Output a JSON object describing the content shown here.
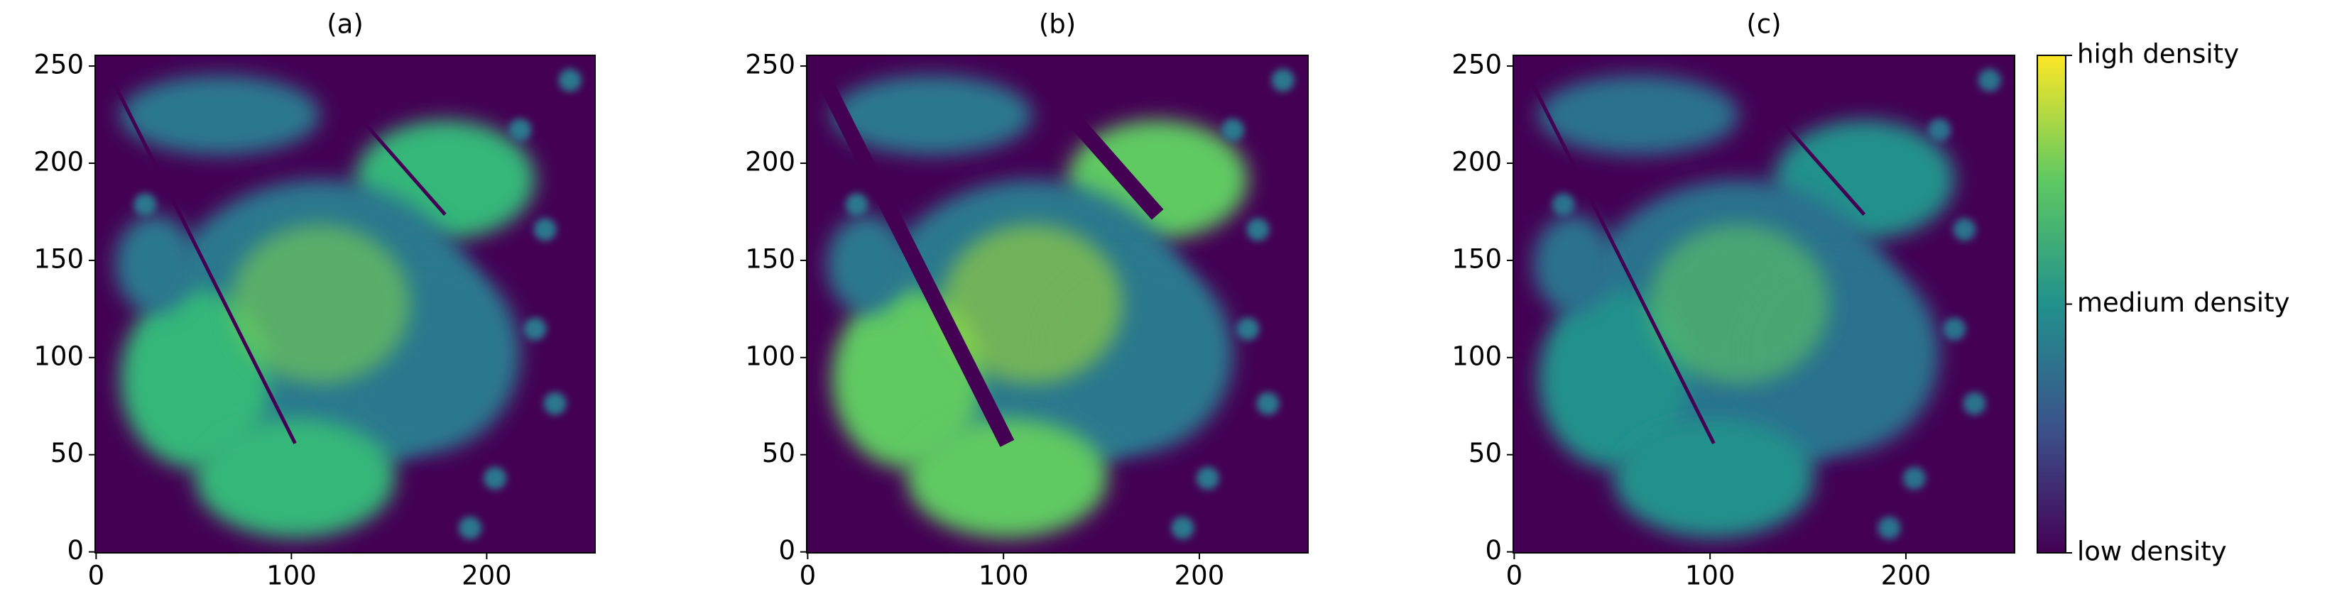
{
  "chart_data": [
    {
      "type": "heatmap",
      "title": "(a)",
      "xlim": [
        -0.5,
        255.5
      ],
      "ylim": [
        255.5,
        -0.5
      ],
      "xticks": [
        0,
        100,
        200
      ],
      "yticks": [
        0,
        50,
        100,
        150,
        200,
        250
      ],
      "colors": [
        "#440154",
        "#2a788e",
        "#35b779",
        "#7ad151"
      ]
    },
    {
      "type": "heatmap",
      "title": "(b)",
      "xlim": [
        -0.5,
        255.5
      ],
      "ylim": [
        255.5,
        -0.5
      ],
      "xticks": [
        0,
        100,
        200
      ],
      "yticks": [
        0,
        50,
        100,
        150,
        200,
        250
      ],
      "colors": [
        "#440154",
        "#2a788e",
        "#5ec962",
        "#a0da39"
      ]
    },
    {
      "type": "heatmap",
      "title": "(c)",
      "xlim": [
        -0.5,
        255.5
      ],
      "ylim": [
        255.5,
        -0.5
      ],
      "xticks": [
        0,
        100,
        200
      ],
      "yticks": [
        0,
        50,
        100,
        150,
        200,
        250
      ],
      "colors": [
        "#440154",
        "#2c728e",
        "#21918c",
        "#5ec962"
      ],
      "colorbar": {
        "labels": [
          "low density",
          "medium density",
          "high density"
        ],
        "colors": [
          "#440154",
          "#3b528b",
          "#21918c",
          "#5ec962",
          "#fde725"
        ]
      }
    }
  ]
}
